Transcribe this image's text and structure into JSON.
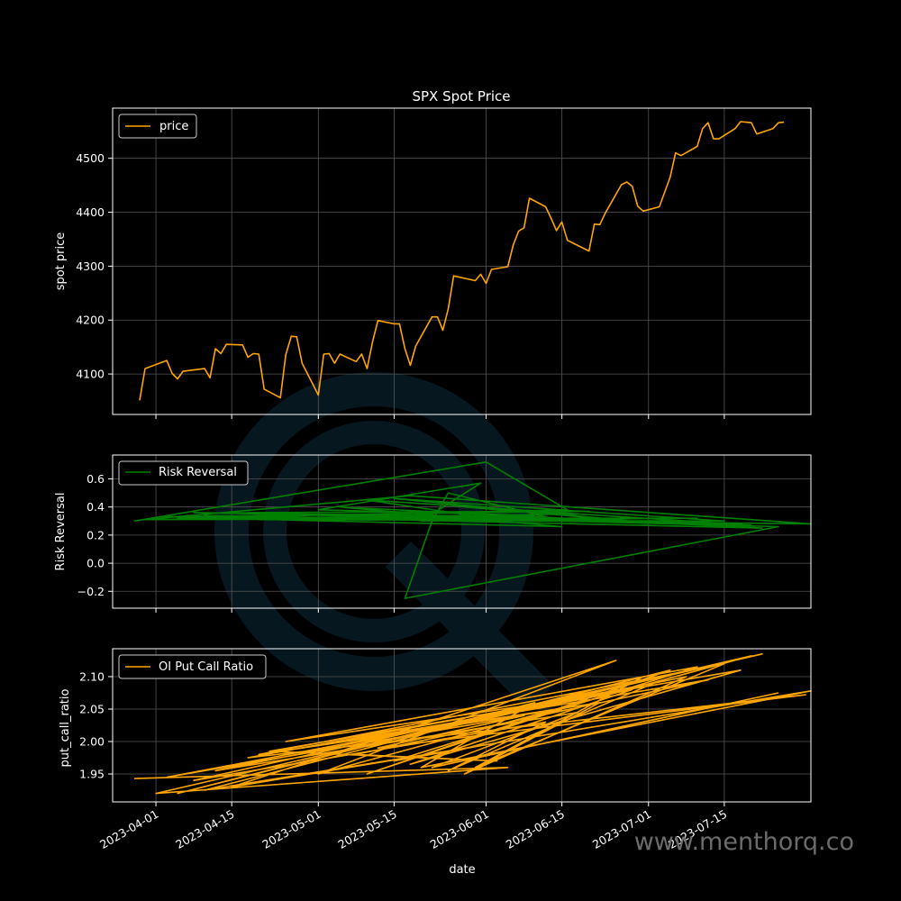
{
  "watermark_text": "www.menthorq.co",
  "colors": {
    "background": "#000000",
    "price": "#ffa500",
    "risk_reversal": "#008000",
    "put_call": "#ffa500",
    "logo": "#0c2a3a"
  },
  "x_axis": {
    "label": "date",
    "ticks": [
      "2023-04-01",
      "2023-04-15",
      "2023-05-01",
      "2023-05-15",
      "2023-06-01",
      "2023-06-15",
      "2023-07-01",
      "2023-07-15"
    ],
    "range": [
      "2023-03-24",
      "2023-07-31"
    ]
  },
  "chart_data": [
    {
      "type": "line",
      "title": "SPX Spot Price",
      "ylabel": "spot price",
      "ylim": [
        4025,
        4593
      ],
      "yticks": [
        4100,
        4200,
        4300,
        4400,
        4500
      ],
      "legend": "top-left",
      "grid": true,
      "series": [
        {
          "name": "price",
          "x": [
            "2023-03-29",
            "2023-03-30",
            "2023-04-03",
            "2023-04-04",
            "2023-04-05",
            "2023-04-06",
            "2023-04-10",
            "2023-04-11",
            "2023-04-12",
            "2023-04-13",
            "2023-04-14",
            "2023-04-17",
            "2023-04-18",
            "2023-04-19",
            "2023-04-20",
            "2023-04-21",
            "2023-04-24",
            "2023-04-25",
            "2023-04-26",
            "2023-04-27",
            "2023-04-28",
            "2023-05-01",
            "2023-05-02",
            "2023-05-03",
            "2023-05-04",
            "2023-05-05",
            "2023-05-08",
            "2023-05-09",
            "2023-05-10",
            "2023-05-11",
            "2023-05-12",
            "2023-05-15",
            "2023-05-16",
            "2023-05-17",
            "2023-05-18",
            "2023-05-19",
            "2023-05-22",
            "2023-05-23",
            "2023-05-24",
            "2023-05-25",
            "2023-05-26",
            "2023-05-30",
            "2023-05-31",
            "2023-06-01",
            "2023-06-02",
            "2023-06-05",
            "2023-06-06",
            "2023-06-07",
            "2023-06-08",
            "2023-06-09",
            "2023-06-12",
            "2023-06-13",
            "2023-06-14",
            "2023-06-15",
            "2023-06-16",
            "2023-06-20",
            "2023-06-21",
            "2023-06-22",
            "2023-06-23",
            "2023-06-26",
            "2023-06-27",
            "2023-06-28",
            "2023-06-29",
            "2023-06-30",
            "2023-07-03",
            "2023-07-05",
            "2023-07-06",
            "2023-07-07",
            "2023-07-10",
            "2023-07-11",
            "2023-07-12",
            "2023-07-13",
            "2023-07-14",
            "2023-07-17",
            "2023-07-18",
            "2023-07-19",
            "2023-07-20",
            "2023-07-21",
            "2023-07-24",
            "2023-07-25",
            "2023-07-26"
          ],
          "values": [
            4051,
            4110,
            4125,
            4101,
            4091,
            4105,
            4110,
            4093,
            4147,
            4138,
            4155,
            4154,
            4131,
            4138,
            4137,
            4072,
            4056,
            4136,
            4170,
            4169,
            4120,
            4061,
            4137,
            4138,
            4120,
            4137,
            4123,
            4137,
            4110,
            4159,
            4199,
            4193,
            4193,
            4147,
            4116,
            4152,
            4206,
            4206,
            4181,
            4221,
            4282,
            4273,
            4285,
            4268,
            4294,
            4299,
            4339,
            4365,
            4371,
            4426,
            4410,
            4389,
            4366,
            4382,
            4348,
            4328,
            4378,
            4377,
            4398,
            4451,
            4456,
            4448,
            4411,
            4402,
            4410,
            4465,
            4510,
            4505,
            4522,
            4555,
            4566,
            4536,
            4536,
            4555,
            4568,
            4567,
            4566,
            4545,
            4555,
            4566,
            4567
          ]
        }
      ]
    },
    {
      "type": "line",
      "title": "",
      "ylabel": "Risk Reversal",
      "ylim": [
        -0.32,
        0.77
      ],
      "yticks": [
        "−0.2",
        "0.0",
        "0.2",
        "0.4",
        "0.6"
      ],
      "ytick_values": [
        -0.2,
        0.0,
        0.2,
        0.4,
        0.6
      ],
      "legend": "top-left",
      "grid": true,
      "series": [
        {
          "name": "Risk Reversal",
          "x": [
            "2023-03-28",
            "2023-06-01",
            "2023-06-16",
            "2023-04-05",
            "2023-07-10",
            "2023-03-30",
            "2023-05-18",
            "2023-07-31",
            "2023-04-02",
            "2023-06-20",
            "2023-04-18",
            "2023-07-20",
            "2023-05-10",
            "2023-06-05",
            "2023-04-10",
            "2023-07-22",
            "2023-05-05",
            "2023-06-15",
            "2023-04-12",
            "2023-07-05",
            "2023-05-20",
            "2023-05-31",
            "2023-05-01",
            "2023-06-10",
            "2023-04-20",
            "2023-07-15",
            "2023-05-15",
            "2023-06-25",
            "2023-04-15",
            "2023-07-25",
            "2023-05-17",
            "2023-05-22",
            "2023-05-25",
            "2023-06-12",
            "2023-04-08",
            "2023-07-01",
            "2023-05-28",
            "2023-06-18",
            "2023-03-30"
          ],
          "values": [
            0.3,
            0.72,
            0.38,
            0.32,
            0.32,
            0.31,
            0.48,
            0.28,
            0.33,
            0.37,
            0.36,
            0.27,
            0.45,
            0.3,
            0.34,
            0.25,
            0.4,
            0.26,
            0.32,
            0.32,
            0.3,
            0.57,
            0.38,
            0.34,
            0.31,
            0.3,
            0.46,
            0.31,
            0.36,
            0.26,
            -0.25,
            0.3,
            0.5,
            0.33,
            0.36,
            0.29,
            0.4,
            0.35,
            0.31
          ]
        }
      ]
    },
    {
      "type": "line",
      "title": "",
      "ylabel": "put_call_ratio",
      "ylim": [
        1.907,
        2.143
      ],
      "yticks": [
        1.95,
        2.0,
        2.05,
        2.1
      ],
      "legend": "top-left",
      "grid": true,
      "series": [
        {
          "name": "OI Put Call Ratio",
          "x": [
            "2023-03-28",
            "2023-06-05",
            "2023-04-01",
            "2023-07-20",
            "2023-05-01",
            "2023-06-25",
            "2023-04-15",
            "2023-07-31",
            "2023-05-20",
            "2023-06-10",
            "2023-04-05",
            "2023-07-05",
            "2023-05-10",
            "2023-06-15",
            "2023-04-20",
            "2023-07-15",
            "2023-05-30",
            "2023-06-30",
            "2023-04-10",
            "2023-06-01",
            "2023-05-15",
            "2023-07-10",
            "2023-04-25",
            "2023-06-20",
            "2023-05-05",
            "2023-07-22",
            "2023-04-08",
            "2023-06-12",
            "2023-05-25",
            "2023-07-02",
            "2023-04-18",
            "2023-07-30",
            "2023-05-12",
            "2023-06-08",
            "2023-04-03",
            "2023-06-28",
            "2023-05-18",
            "2023-07-18",
            "2023-04-22",
            "2023-06-03",
            "2023-05-08",
            "2023-07-12",
            "2023-04-28",
            "2023-06-22",
            "2023-05-28",
            "2023-07-08",
            "2023-04-12",
            "2023-06-18",
            "2023-05-22",
            "2023-07-25"
          ],
          "values": [
            1.943,
            1.96,
            1.92,
            2.132,
            1.95,
            2.125,
            1.93,
            2.078,
            1.96,
            2.06,
            1.92,
            2.11,
            1.95,
            2.05,
            1.98,
            2.12,
            1.96,
            2.1,
            1.925,
            1.995,
            1.97,
            2.115,
            2.0,
            2.07,
            1.985,
            2.135,
            1.94,
            2.03,
            1.955,
            2.09,
            1.975,
            2.072,
            1.99,
            2.04,
            1.945,
            2.08,
            1.965,
            2.11,
            1.985,
            1.97,
            1.98,
            2.095,
            1.99,
            2.06,
            1.95,
            2.1,
            1.955,
            2.045,
            1.96,
            2.075
          ]
        }
      ]
    }
  ]
}
